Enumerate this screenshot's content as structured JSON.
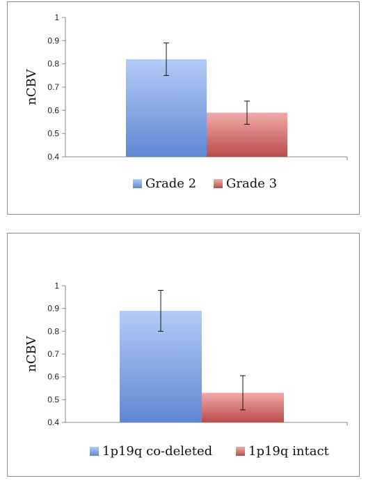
{
  "chart_data": [
    {
      "type": "bar",
      "categories": [
        "Grade 2",
        "Grade 3"
      ],
      "values": [
        0.82,
        0.59
      ],
      "errors": [
        0.07,
        0.05
      ],
      "ylabel": "nCBV",
      "xlabel": "",
      "ylim": [
        0.4,
        1
      ],
      "yticks": [
        "0.4",
        "0.5",
        "0.6",
        "0.7",
        "0.8",
        "0.9",
        "1"
      ],
      "legend": [
        "Grade 2",
        "Grade 3"
      ],
      "legend_position": "bottom",
      "colors": [
        "#6f96dd",
        "#c85a5a"
      ],
      "grid": false
    },
    {
      "type": "bar",
      "categories": [
        "1p19q co-deleted",
        "1p19q intact"
      ],
      "values": [
        0.89,
        0.53
      ],
      "errors": [
        0.09,
        0.075
      ],
      "ylabel": "nCBV",
      "xlabel": "",
      "ylim": [
        0.4,
        1
      ],
      "yticks": [
        "0.4",
        "0.5",
        "0.6",
        "0.7",
        "0.8",
        "0.9",
        "1"
      ],
      "legend": [
        "1p19q co-deleted",
        "1p19q intact"
      ],
      "legend_position": "bottom",
      "colors": [
        "#6f96dd",
        "#c85a5a"
      ],
      "grid": false
    }
  ]
}
